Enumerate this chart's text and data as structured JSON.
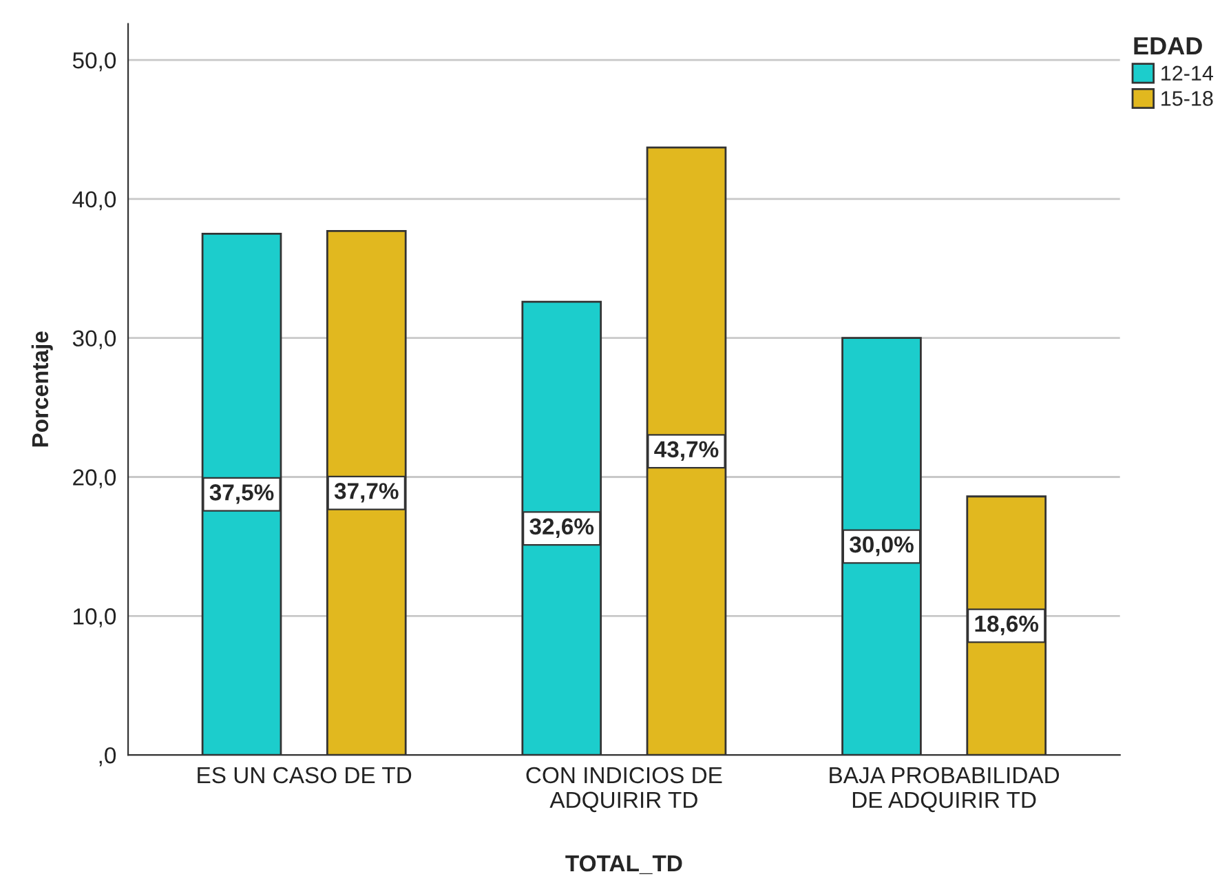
{
  "chart_data": {
    "type": "bar",
    "xlabel": "TOTAL_TD",
    "ylabel": "Porcentaje",
    "legend_title": "EDAD",
    "legend": "top right",
    "categories": [
      "ES UN CASO DE TD",
      "CON INDICIOS DE\nADQUIRIR TD",
      "BAJA PROBABILIDAD\nDE ADQUIRIR TD"
    ],
    "series": [
      {
        "name": "12-14",
        "color": "#1ccdcc",
        "values": [
          37.5,
          32.6,
          30.0
        ],
        "value_labels": [
          "37,5%",
          "32,6%",
          "30,0%"
        ]
      },
      {
        "name": "15-18",
        "color": "#e1b81f",
        "values": [
          37.7,
          43.7,
          18.6
        ],
        "value_labels": [
          "37,7%",
          "43,7%",
          "18,6%"
        ]
      }
    ],
    "ylim": [
      0,
      52.6
    ],
    "yticks": [
      {
        "value": 0,
        "label": ",0"
      },
      {
        "value": 10,
        "label": "10,0"
      },
      {
        "value": 20,
        "label": "20,0"
      },
      {
        "value": 30,
        "label": "30,0"
      },
      {
        "value": 40,
        "label": "40,0"
      },
      {
        "value": 50,
        "label": "50,0"
      }
    ],
    "grid": "y"
  }
}
